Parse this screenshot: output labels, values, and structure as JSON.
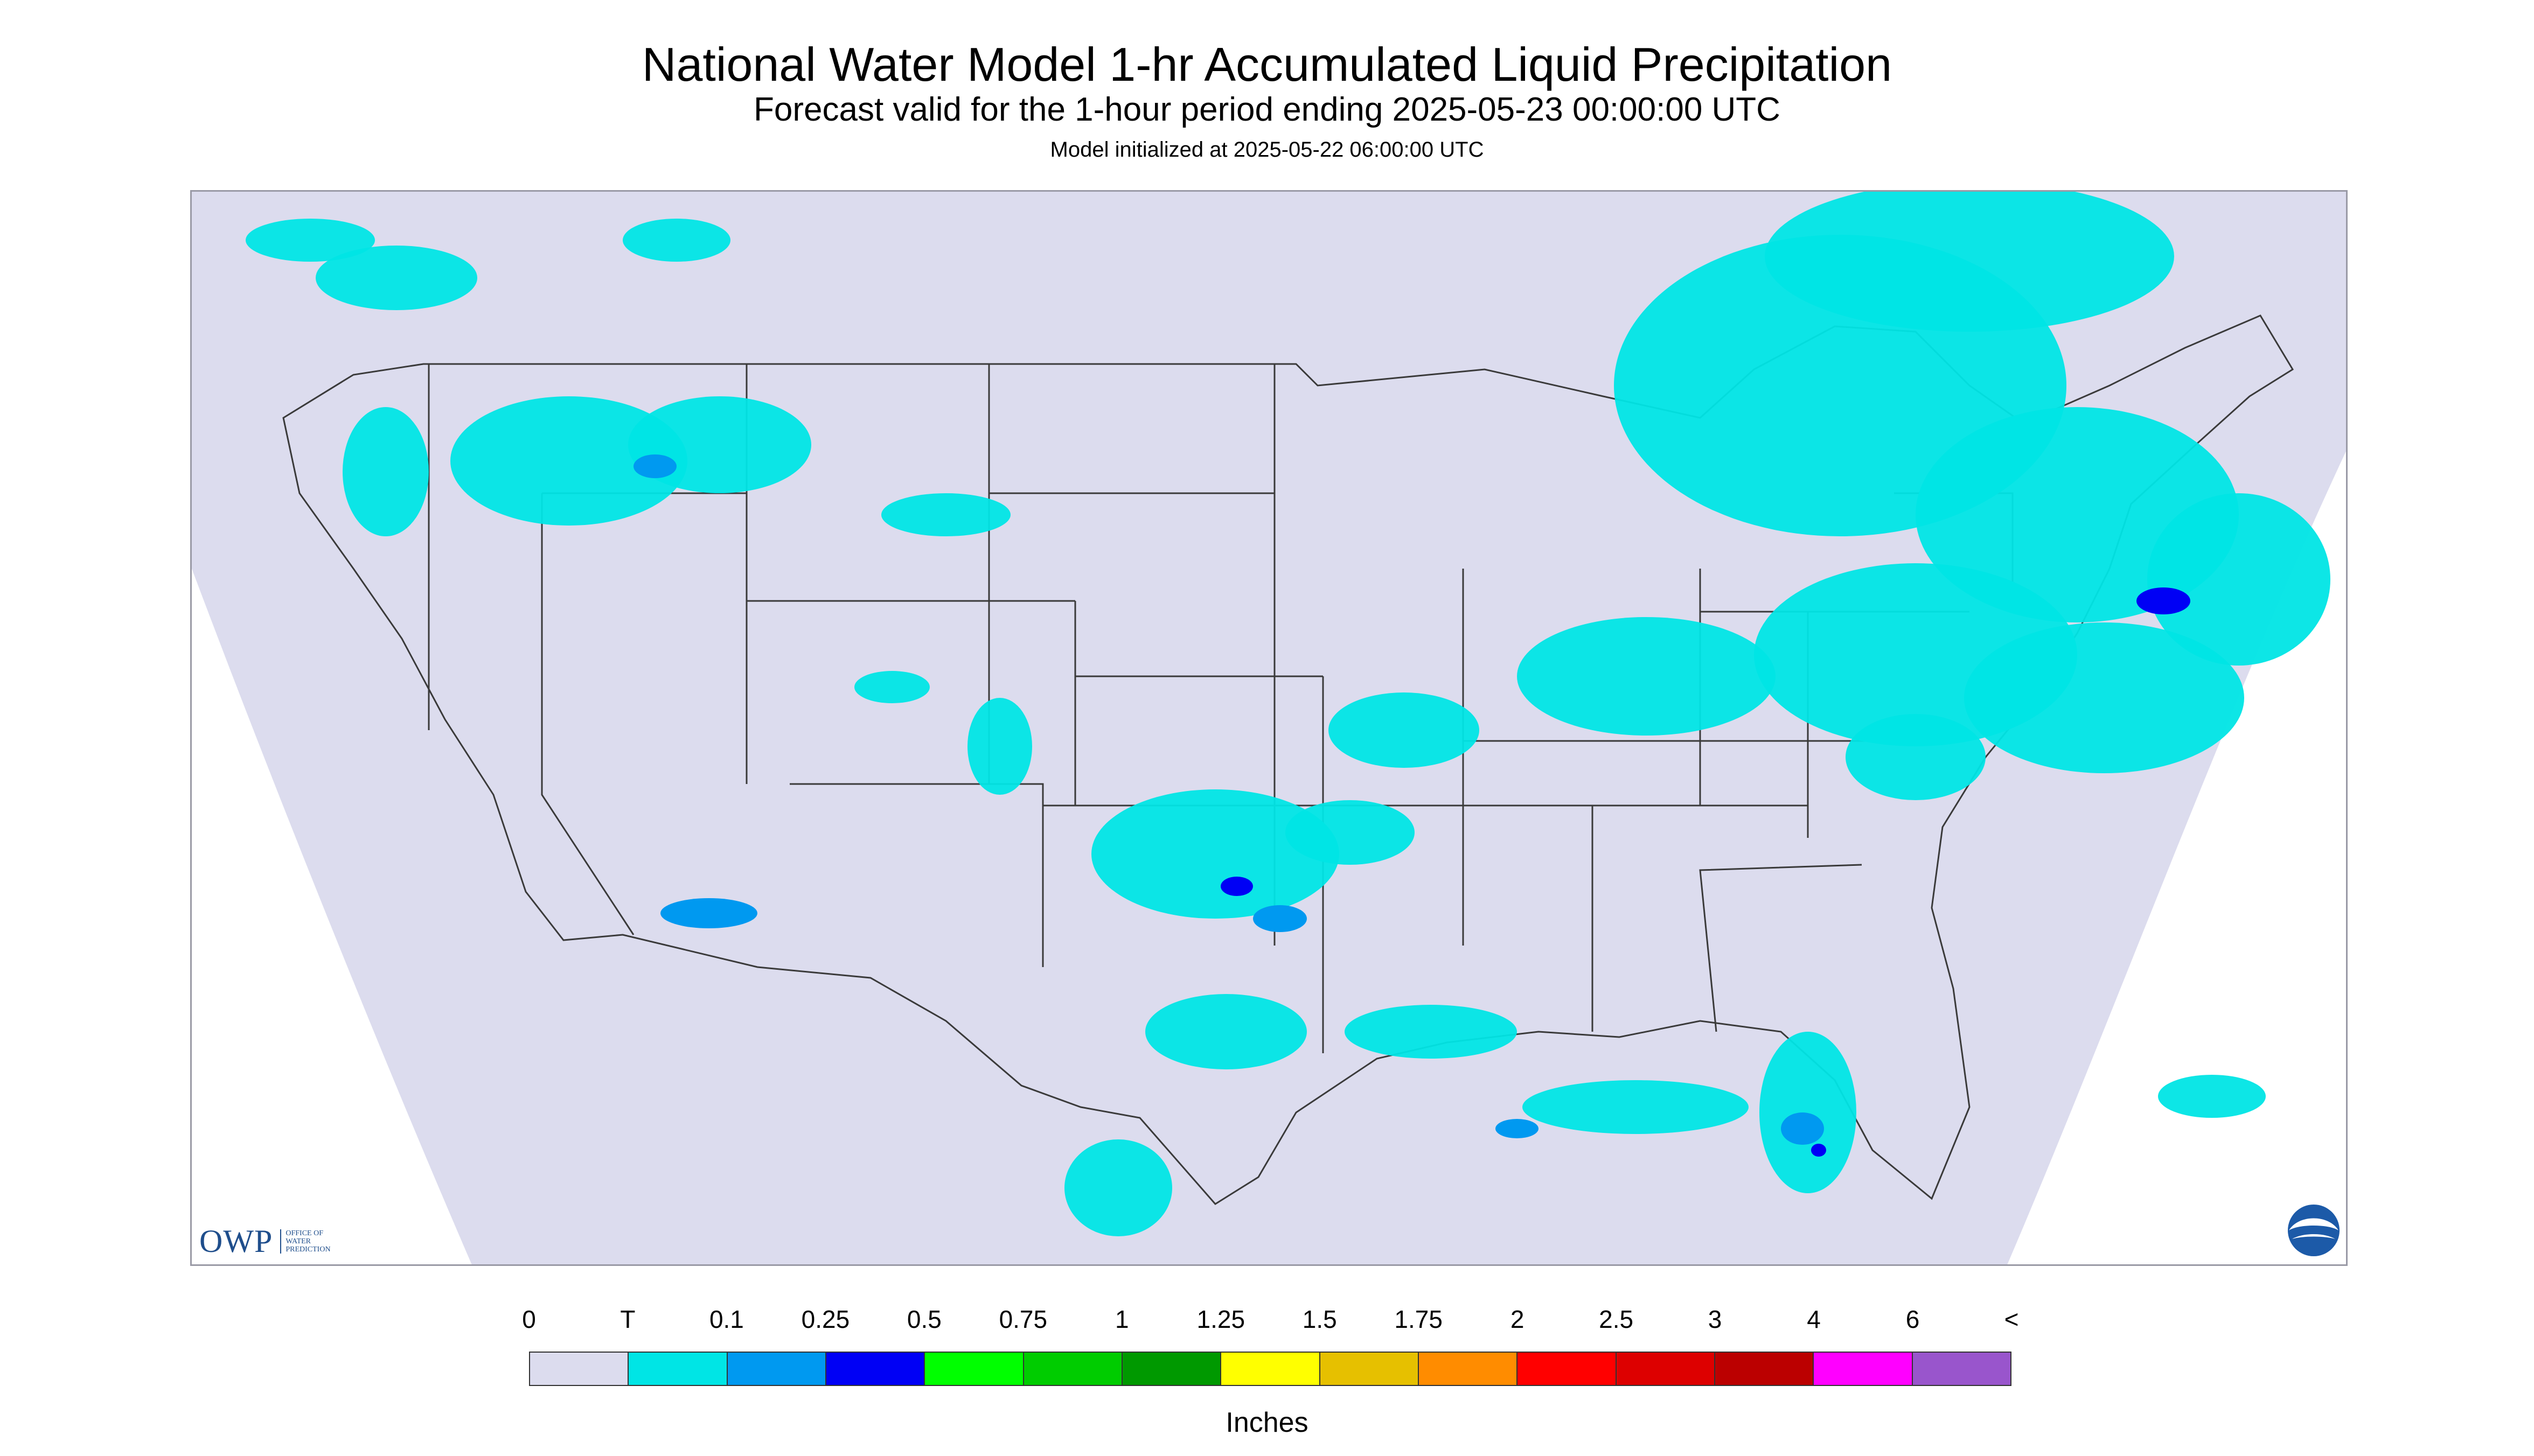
{
  "header": {
    "title": "National Water Model 1-hr Accumulated Liquid Precipitation",
    "subtitle": "Forecast valid for the 1-hour period ending 2025-05-23 00:00:00 UTC",
    "init": "Model initialized at 2025-05-22 06:00:00 UTC"
  },
  "map": {
    "background_color": "#dcdcee",
    "land_color": "#dcdcee",
    "border_color": "#3a3a3a",
    "precip_areas": [
      {
        "region": "Pacific Northwest / Montana",
        "intensity": "T"
      },
      {
        "region": "Great Lakes / Ontario",
        "intensity": "T"
      },
      {
        "region": "Northeast / New England",
        "intensity": "0.25"
      },
      {
        "region": "Oklahoma / North Texas",
        "intensity": "0.25"
      },
      {
        "region": "Gulf Coast / Louisiana",
        "intensity": "T"
      },
      {
        "region": "South Florida",
        "intensity": "0.25"
      },
      {
        "region": "Gulf of Mexico",
        "intensity": "0.1"
      },
      {
        "region": "Western Atlantic",
        "intensity": "0.1"
      }
    ]
  },
  "logos": {
    "owp_mark": "OWP",
    "owp_text": "OFFICE OF\nWATER\nPREDICTION",
    "noaa_icon": "noaa-icon"
  },
  "legend": {
    "labels": [
      "0",
      "T",
      "0.1",
      "0.25",
      "0.5",
      "0.75",
      "1",
      "1.25",
      "1.5",
      "1.75",
      "2",
      "2.5",
      "3",
      "4",
      "6",
      "<"
    ],
    "colors": [
      "#dcdcee",
      "#00e5e5",
      "#0099f0",
      "#0000f5",
      "#00ff00",
      "#00cc00",
      "#009900",
      "#ffff00",
      "#e6c000",
      "#ff8c00",
      "#ff0000",
      "#dd0000",
      "#bb0000",
      "#ff00ff",
      "#9955cc"
    ],
    "units": "Inches"
  }
}
